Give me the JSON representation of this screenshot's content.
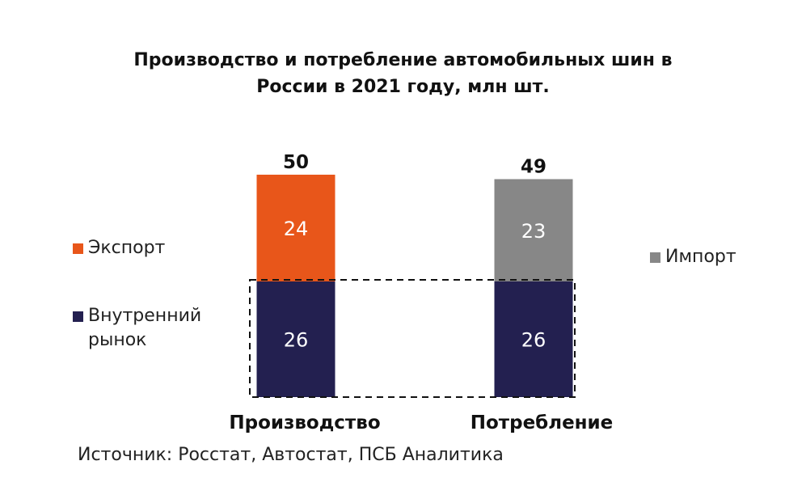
{
  "title_lines": [
    "Производство и потребление автомобильных шин в",
    "России в 2021 году, млн шт."
  ],
  "legend": {
    "export": {
      "label": "Экспорт",
      "color": "#e8561a"
    },
    "domestic": {
      "label": "Внутренний рынок",
      "color": "#232050"
    },
    "import": {
      "label": "Импорт",
      "color": "#878787"
    }
  },
  "source": "Источник: Росстат, Автостат, ПСБ Аналитика",
  "chart_data": {
    "type": "bar",
    "stacked": true,
    "categories": [
      "Производство",
      "Потребление"
    ],
    "totals": [
      50,
      49
    ],
    "series": [
      {
        "name": "Внутренний рынок",
        "values": [
          26,
          26
        ],
        "color": "#232050"
      },
      {
        "name": "Экспорт",
        "values": [
          24,
          null
        ],
        "color": "#e8561a"
      },
      {
        "name": "Импорт",
        "values": [
          null,
          23
        ],
        "color": "#878787"
      }
    ],
    "grid": false,
    "highlight": "dashed frame around Внутренний рынок segments"
  }
}
